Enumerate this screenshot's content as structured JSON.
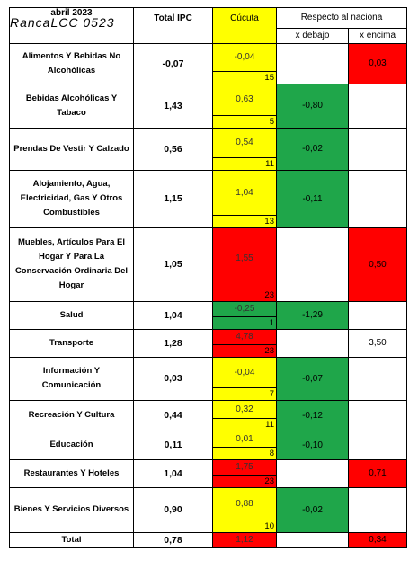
{
  "header": {
    "month": "abril 2023",
    "signature": "RancaLCC 0523",
    "total_ipc": "Total IPC",
    "city": "Cúcuta",
    "respecto": "Respecto al naciona",
    "debajo": "x debajo",
    "encima": "x encima"
  },
  "table": {
    "rows": [
      {
        "label": "Alimentos Y Bebidas No Alcohólicas",
        "total": "-0,07",
        "cucuta": "-0,04",
        "rank": "15",
        "debajo": null,
        "encima": "0,03",
        "cucuta_color": "yellow",
        "debajo_color": null,
        "encima_color": "red"
      },
      {
        "label": "Bebidas Alcohólicas Y Tabaco",
        "total": "1,43",
        "cucuta": "0,63",
        "rank": "5",
        "debajo": "-0,80",
        "encima": null,
        "cucuta_color": "yellow",
        "debajo_color": "green",
        "encima_color": null
      },
      {
        "label": "Prendas De Vestir Y Calzado",
        "total": "0,56",
        "cucuta": "0,54",
        "rank": "11",
        "debajo": "-0,02",
        "encima": null,
        "cucuta_color": "yellow",
        "debajo_color": "green",
        "encima_color": null
      },
      {
        "label": "Alojamiento, Agua, Electricidad, Gas Y Otros Combustibles",
        "total": "1,15",
        "cucuta": "1,04",
        "rank": "13",
        "debajo": "-0,11",
        "encima": null,
        "cucuta_color": "yellow",
        "debajo_color": "green",
        "encima_color": null
      },
      {
        "label": "Muebles, Artículos Para El Hogar Y Para La Conservación Ordinaria Del Hogar",
        "total": "1,05",
        "cucuta": "1,55",
        "rank": "23",
        "debajo": null,
        "encima": "0,50",
        "cucuta_color": "red",
        "debajo_color": null,
        "encima_color": "red"
      },
      {
        "label": "Salud",
        "total": "1,04",
        "cucuta": "-0,25",
        "rank": "1",
        "debajo": "-1,29",
        "encima": null,
        "cucuta_color": "green",
        "debajo_color": "green",
        "encima_color": null
      },
      {
        "label": "Transporte",
        "total": "1,28",
        "cucuta": "4,78",
        "rank": "23",
        "debajo": null,
        "encima": "3,50",
        "cucuta_color": "red",
        "debajo_color": null,
        "encima_color": null
      },
      {
        "label": "Información Y Comunicación",
        "total": "0,03",
        "cucuta": "-0,04",
        "rank": "7",
        "debajo": "-0,07",
        "encima": null,
        "cucuta_color": "yellow",
        "debajo_color": "green",
        "encima_color": null
      },
      {
        "label": "Recreación Y Cultura",
        "total": "0,44",
        "cucuta": "0,32",
        "rank": "11",
        "debajo": "-0,12",
        "encima": null,
        "cucuta_color": "yellow",
        "debajo_color": "green",
        "encima_color": null
      },
      {
        "label": "Educación",
        "total": "0,11",
        "cucuta": "0,01",
        "rank": "8",
        "debajo": "-0,10",
        "encima": null,
        "cucuta_color": "yellow",
        "debajo_color": "green",
        "encima_color": null
      },
      {
        "label": "Restaurantes Y Hoteles",
        "total": "1,04",
        "cucuta": "1,75",
        "rank": "23",
        "debajo": null,
        "encima": "0,71",
        "cucuta_color": "red",
        "debajo_color": null,
        "encima_color": "red"
      },
      {
        "label": "Bienes Y Servicios Diversos",
        "total": "0,90",
        "cucuta": "0,88",
        "rank": "10",
        "debajo": "-0,02",
        "encima": null,
        "cucuta_color": "yellow",
        "debajo_color": "green",
        "encima_color": null
      },
      {
        "label": "Total",
        "total": "0,78",
        "cucuta": "1,12",
        "rank": null,
        "debajo": null,
        "encima": "0,34",
        "cucuta_color": "red",
        "debajo_color": null,
        "encima_color": "red"
      }
    ]
  }
}
